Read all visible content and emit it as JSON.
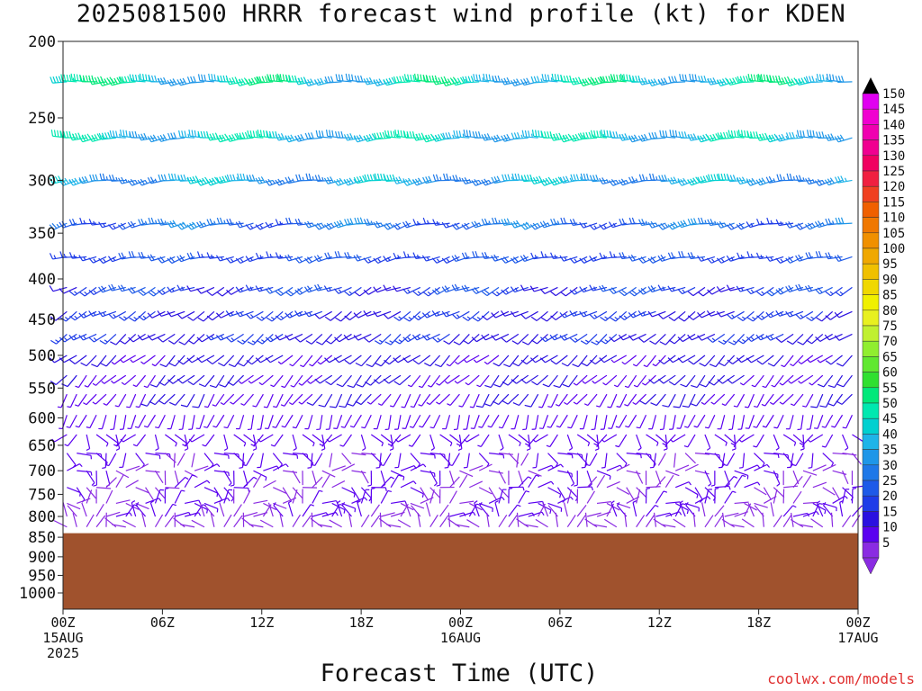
{
  "chart_data": {
    "type": "wind_barb_time_height",
    "title": "2025081500 HRRR forecast wind profile (kt) for KDEN",
    "xlabel": "Forecast Time (UTC)",
    "ylabel": "",
    "y_scale": "log-pressure",
    "y_range_hpa": [
      1050,
      200
    ],
    "y_ticks": [
      200,
      250,
      300,
      350,
      400,
      450,
      500,
      550,
      600,
      650,
      700,
      750,
      800,
      850,
      900,
      950,
      1000
    ],
    "x_range_hours": [
      0,
      48
    ],
    "x_ticks": [
      {
        "hour": 0,
        "lines": [
          "00Z",
          "15AUG",
          "2025"
        ]
      },
      {
        "hour": 6,
        "lines": [
          "06Z"
        ]
      },
      {
        "hour": 12,
        "lines": [
          "12Z"
        ]
      },
      {
        "hour": 18,
        "lines": [
          "18Z"
        ]
      },
      {
        "hour": 24,
        "lines": [
          "00Z",
          "16AUG"
        ]
      },
      {
        "hour": 30,
        "lines": [
          "06Z"
        ]
      },
      {
        "hour": 36,
        "lines": [
          "12Z"
        ]
      },
      {
        "hour": 42,
        "lines": [
          "18Z"
        ]
      },
      {
        "hour": 48,
        "lines": [
          "00Z",
          "17AUG"
        ]
      }
    ],
    "surface_pressure_hpa": 840,
    "terrain_color": "#a0522d",
    "colorbar": {
      "levels": [
        5,
        10,
        15,
        20,
        25,
        30,
        35,
        40,
        45,
        50,
        55,
        60,
        65,
        70,
        75,
        80,
        85,
        90,
        95,
        100,
        105,
        110,
        115,
        120,
        125,
        130,
        135,
        140,
        145,
        150
      ],
      "colors": [
        "#8a2be2",
        "#5a00f0",
        "#2a10e0",
        "#1e3ce8",
        "#1e5ae8",
        "#1e78e8",
        "#1e96e8",
        "#1eb4e8",
        "#00d0d0",
        "#00e8b0",
        "#00e87a",
        "#30e030",
        "#60e830",
        "#90ee30",
        "#c0f030",
        "#e8f020",
        "#f0f000",
        "#f0d800",
        "#f0c000",
        "#f0a800",
        "#f09000",
        "#f07800",
        "#f06000",
        "#f04020",
        "#f02040",
        "#f00060",
        "#f00090",
        "#f000b0",
        "#f000d0",
        "#e000f0"
      ],
      "unit": "kt"
    },
    "wind_levels": [
      {
        "p": 225,
        "speed": 42,
        "dir": 265
      },
      {
        "p": 265,
        "speed": 40,
        "dir": 265
      },
      {
        "p": 300,
        "speed": 34,
        "dir": 260
      },
      {
        "p": 340,
        "speed": 25,
        "dir": 255
      },
      {
        "p": 375,
        "speed": 20,
        "dir": 255
      },
      {
        "p": 410,
        "speed": 18,
        "dir": 245
      },
      {
        "p": 440,
        "speed": 16,
        "dir": 240
      },
      {
        "p": 470,
        "speed": 14,
        "dir": 235
      },
      {
        "p": 500,
        "speed": 12,
        "dir": 230
      },
      {
        "p": 530,
        "speed": 10,
        "dir": 225
      },
      {
        "p": 560,
        "speed": 9,
        "dir": 215
      },
      {
        "p": 595,
        "speed": 8,
        "dir": 200
      },
      {
        "p": 630,
        "speed": 7,
        "dir": 180
      },
      {
        "p": 665,
        "speed": 6,
        "dir": 150
      },
      {
        "p": 700,
        "speed": 5,
        "dir": 120
      },
      {
        "p": 735,
        "speed": 5,
        "dir": 90
      },
      {
        "p": 770,
        "speed": 5,
        "dir": 60
      },
      {
        "p": 800,
        "speed": 5,
        "dir": 20
      },
      {
        "p": 825,
        "speed": 4,
        "dir": 340
      }
    ]
  },
  "credit": "coolwx.com/models"
}
